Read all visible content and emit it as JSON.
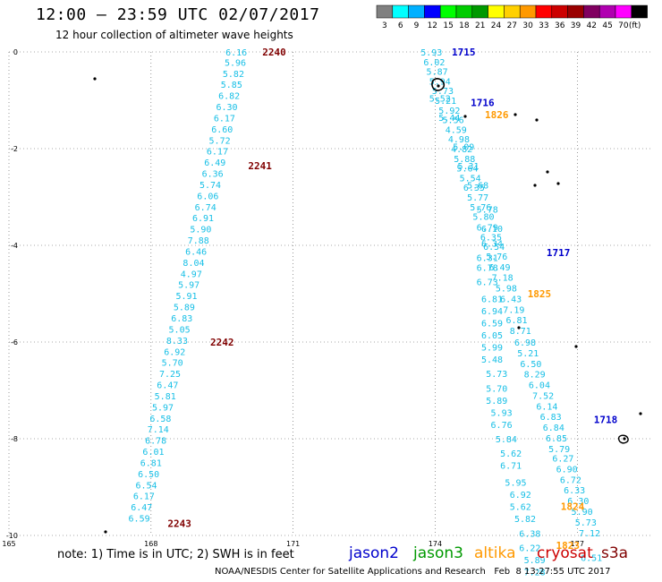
{
  "header": {
    "title": "12:00 – 23:59 UTC 02/07/2017",
    "subtitle": "12 hour collection of altimeter wave heights"
  },
  "legend": {
    "unit": "(ft)",
    "entries": [
      {
        "label": "3",
        "color": "#808080"
      },
      {
        "label": "6",
        "color": "#00ffff"
      },
      {
        "label": "9",
        "color": "#00b0ff"
      },
      {
        "label": "12",
        "color": "#0000ff"
      },
      {
        "label": "15",
        "color": "#00ff00"
      },
      {
        "label": "18",
        "color": "#00cc00"
      },
      {
        "label": "21",
        "color": "#009900"
      },
      {
        "label": "24",
        "color": "#ffff00"
      },
      {
        "label": "27",
        "color": "#ffd000"
      },
      {
        "label": "30",
        "color": "#ff9900"
      },
      {
        "label": "33",
        "color": "#ff0000"
      },
      {
        "label": "36",
        "color": "#cc0000"
      },
      {
        "label": "39",
        "color": "#990000"
      },
      {
        "label": "42",
        "color": "#800060"
      },
      {
        "label": "45",
        "color": "#b000b0"
      },
      {
        "label": "70",
        "color": "#ff00ff"
      },
      {
        "label": "",
        "color": "#000000"
      }
    ]
  },
  "note": "note: 1) Time is in UTC; 2) SWH is in feet",
  "satellites": [
    {
      "name": "jason2",
      "color": "#0000cc"
    },
    {
      "name": "jason3",
      "color": "#009900"
    },
    {
      "name": "altika",
      "color": "#ff9900"
    },
    {
      "name": "cryosat",
      "color": "#cc0000"
    },
    {
      "name": "s3a",
      "color": "#800000"
    }
  ],
  "footer": "NOAA/NESDIS Center for Satellite Applications and Research   Feb  8 13:27:55 UTC 2017",
  "chart_data": {
    "type": "scatter",
    "title": "12:00 – 23:59 UTC 02/07/2017",
    "xlim": [
      165,
      178.6
    ],
    "ylim": [
      -10,
      0
    ],
    "x_ticks": [
      "165",
      "168",
      "171",
      "174",
      "177"
    ],
    "y_ticks": [
      "0",
      "-2",
      "-4",
      "-6",
      "-8",
      "-10"
    ],
    "grid": true,
    "value_color": "#17bfe6",
    "track_colors": {
      "jason2": "#0000cc",
      "altika": "#ff9900",
      "cryosat": "#800000"
    },
    "tracks": [
      {
        "satellite": "cryosat",
        "time_labels": [
          {
            "text": "2240",
            "x": 170.6,
            "y": 0.0
          },
          {
            "text": "2241",
            "x": 170.3,
            "y": -2.35
          },
          {
            "text": "2242",
            "x": 169.5,
            "y": -6.0
          },
          {
            "text": "2243",
            "x": 168.6,
            "y": -9.75
          }
        ],
        "points": [
          {
            "x": 169.8,
            "y": 0.0,
            "swh": "6.16"
          },
          {
            "x": 169.78,
            "y": -0.21,
            "swh": "5.96"
          },
          {
            "x": 169.74,
            "y": -0.44,
            "swh": "5.82"
          },
          {
            "x": 169.7,
            "y": -0.67,
            "swh": "5.85"
          },
          {
            "x": 169.65,
            "y": -0.9,
            "swh": "6.82"
          },
          {
            "x": 169.6,
            "y": -1.13,
            "swh": "6.30"
          },
          {
            "x": 169.55,
            "y": -1.36,
            "swh": "6.17"
          },
          {
            "x": 169.5,
            "y": -1.59,
            "swh": "6.60"
          },
          {
            "x": 169.45,
            "y": -1.82,
            "swh": "5.72"
          },
          {
            "x": 169.4,
            "y": -2.05,
            "swh": "6.17"
          },
          {
            "x": 169.35,
            "y": -2.28,
            "swh": "6.49"
          },
          {
            "x": 169.3,
            "y": -2.51,
            "swh": "6.36"
          },
          {
            "x": 169.25,
            "y": -2.74,
            "swh": "5.74"
          },
          {
            "x": 169.2,
            "y": -2.97,
            "swh": "6.06"
          },
          {
            "x": 169.15,
            "y": -3.2,
            "swh": "6.74"
          },
          {
            "x": 169.1,
            "y": -3.43,
            "swh": "6.91"
          },
          {
            "x": 169.05,
            "y": -3.66,
            "swh": "5.90"
          },
          {
            "x": 169.0,
            "y": -3.89,
            "swh": "7.88"
          },
          {
            "x": 168.95,
            "y": -4.12,
            "swh": "6.46"
          },
          {
            "x": 168.9,
            "y": -4.35,
            "swh": "8.04"
          },
          {
            "x": 168.85,
            "y": -4.58,
            "swh": "4.97"
          },
          {
            "x": 168.8,
            "y": -4.81,
            "swh": "5.97"
          },
          {
            "x": 168.75,
            "y": -5.04,
            "swh": "5.91"
          },
          {
            "x": 168.7,
            "y": -5.27,
            "swh": "5.89"
          },
          {
            "x": 168.65,
            "y": -5.5,
            "swh": "6.83"
          },
          {
            "x": 168.6,
            "y": -5.73,
            "swh": "5.05"
          },
          {
            "x": 168.55,
            "y": -5.96,
            "swh": "8.33"
          },
          {
            "x": 168.5,
            "y": -6.19,
            "swh": "6.92"
          },
          {
            "x": 168.45,
            "y": -6.42,
            "swh": "5.70"
          },
          {
            "x": 168.4,
            "y": -6.65,
            "swh": "7.25"
          },
          {
            "x": 168.35,
            "y": -6.88,
            "swh": "6.47"
          },
          {
            "x": 168.3,
            "y": -7.11,
            "swh": "5.81"
          },
          {
            "x": 168.25,
            "y": -7.34,
            "swh": "5.97"
          },
          {
            "x": 168.2,
            "y": -7.57,
            "swh": "6.58"
          },
          {
            "x": 168.15,
            "y": -7.8,
            "swh": "7.14"
          },
          {
            "x": 168.1,
            "y": -8.03,
            "swh": "6.78"
          },
          {
            "x": 168.05,
            "y": -8.26,
            "swh": "6.01"
          },
          {
            "x": 168.0,
            "y": -8.49,
            "swh": "6.81"
          },
          {
            "x": 167.95,
            "y": -8.72,
            "swh": "6.50"
          },
          {
            "x": 167.9,
            "y": -8.95,
            "swh": "6.54"
          },
          {
            "x": 167.85,
            "y": -9.18,
            "swh": "6.17"
          },
          {
            "x": 167.8,
            "y": -9.41,
            "swh": "6.47"
          },
          {
            "x": 167.75,
            "y": -9.64,
            "swh": "6.59"
          }
        ]
      },
      {
        "satellite": "jason2",
        "time_labels": [
          {
            "text": "1715",
            "x": 174.6,
            "y": 0.0
          },
          {
            "text": "1716",
            "x": 175.0,
            "y": -1.05
          },
          {
            "text": "1717",
            "x": 176.6,
            "y": -4.15
          },
          {
            "text": "1718",
            "x": 177.6,
            "y": -7.6
          }
        ],
        "points": [
          {
            "x": 173.92,
            "y": 0.0,
            "swh": "5.93"
          },
          {
            "x": 173.98,
            "y": -0.2,
            "swh": "6.02"
          },
          {
            "x": 174.04,
            "y": -0.4,
            "swh": "5.87"
          },
          {
            "x": 174.1,
            "y": -0.6,
            "swh": "5.94"
          },
          {
            "x": 174.16,
            "y": -0.8,
            "swh": "5.73"
          },
          {
            "x": 174.22,
            "y": -1.0,
            "swh": "5.21"
          },
          {
            "x": 174.3,
            "y": -1.2,
            "swh": "5.92"
          },
          {
            "x": 174.38,
            "y": -1.4,
            "swh": "5.56"
          },
          {
            "x": 174.44,
            "y": -1.6,
            "swh": "4.59"
          },
          {
            "x": 174.5,
            "y": -1.8,
            "swh": "4.98"
          },
          {
            "x": 174.56,
            "y": -2.0,
            "swh": "4.82"
          },
          {
            "x": 174.62,
            "y": -2.2,
            "swh": "5.88"
          },
          {
            "x": 174.68,
            "y": -2.4,
            "swh": "5.64"
          },
          {
            "x": 174.74,
            "y": -2.6,
            "swh": "5.54"
          },
          {
            "x": 174.82,
            "y": -2.8,
            "swh": "6.35"
          },
          {
            "x": 174.9,
            "y": -3.0,
            "swh": "5.77"
          },
          {
            "x": 174.96,
            "y": -3.2,
            "swh": "5.76"
          },
          {
            "x": 175.02,
            "y": -3.4,
            "swh": "5.80"
          },
          {
            "x": 175.1,
            "y": -3.62,
            "swh": "6.79"
          },
          {
            "x": 175.18,
            "y": -3.82,
            "swh": "6.35"
          },
          {
            "x": 175.24,
            "y": -4.02,
            "swh": "6.54"
          },
          {
            "x": 175.3,
            "y": -4.22,
            "swh": "5.76"
          },
          {
            "x": 175.36,
            "y": -4.44,
            "swh": "6.49"
          },
          {
            "x": 175.42,
            "y": -4.66,
            "swh": "7.18"
          },
          {
            "x": 175.5,
            "y": -4.88,
            "swh": "5.98"
          },
          {
            "x": 175.6,
            "y": -5.1,
            "swh": "6.43"
          },
          {
            "x": 175.66,
            "y": -5.32,
            "swh": "7.19"
          },
          {
            "x": 175.72,
            "y": -5.54,
            "swh": "6.81"
          },
          {
            "x": 175.8,
            "y": -5.76,
            "swh": "8.71"
          },
          {
            "x": 175.9,
            "y": -6.0,
            "swh": "6.98"
          },
          {
            "x": 175.96,
            "y": -6.22,
            "swh": "5.21"
          },
          {
            "x": 176.02,
            "y": -6.44,
            "swh": "6.50"
          },
          {
            "x": 176.1,
            "y": -6.66,
            "swh": "8.29"
          },
          {
            "x": 176.2,
            "y": -6.88,
            "swh": "6.04"
          },
          {
            "x": 176.28,
            "y": -7.1,
            "swh": "7.52"
          },
          {
            "x": 176.36,
            "y": -7.32,
            "swh": "6.14"
          },
          {
            "x": 176.44,
            "y": -7.54,
            "swh": "6.83"
          },
          {
            "x": 176.5,
            "y": -7.76,
            "swh": "6.84"
          },
          {
            "x": 176.56,
            "y": -7.98,
            "swh": "6.85"
          },
          {
            "x": 176.62,
            "y": -8.2,
            "swh": "5.79"
          },
          {
            "x": 176.7,
            "y": -8.4,
            "swh": "6.27"
          },
          {
            "x": 176.78,
            "y": -8.62,
            "swh": "6.90"
          },
          {
            "x": 176.86,
            "y": -8.84,
            "swh": "6.72"
          },
          {
            "x": 176.94,
            "y": -9.06,
            "swh": "6.33"
          },
          {
            "x": 177.02,
            "y": -9.28,
            "swh": "6.30"
          },
          {
            "x": 177.1,
            "y": -9.5,
            "swh": "5.90"
          },
          {
            "x": 177.18,
            "y": -9.72,
            "swh": "5.73"
          },
          {
            "x": 177.26,
            "y": -9.94,
            "swh": "7.12"
          }
        ]
      },
      {
        "satellite": "altika",
        "time_labels": [
          {
            "text": "1826",
            "x": 175.3,
            "y": -1.3
          },
          {
            "text": "1825",
            "x": 176.2,
            "y": -5.0
          },
          {
            "text": "1824",
            "x": 176.9,
            "y": -9.4
          },
          {
            "text": "1823",
            "x": 176.8,
            "y": -10.2
          }
        ],
        "points": [
          {
            "x": 174.1,
            "y": -0.95,
            "swh": "5.52"
          },
          {
            "x": 174.3,
            "y": -1.35,
            "swh": "5.44"
          },
          {
            "x": 174.6,
            "y": -1.95,
            "swh": "5.09"
          },
          {
            "x": 174.7,
            "y": -2.35,
            "swh": "5.31"
          },
          {
            "x": 174.9,
            "y": -2.75,
            "swh": "5.68"
          },
          {
            "x": 175.1,
            "y": -3.25,
            "swh": "5.78"
          },
          {
            "x": 175.2,
            "y": -3.65,
            "swh": "6.10"
          },
          {
            "x": 175.2,
            "y": -3.95,
            "swh": "6.34"
          },
          {
            "x": 175.1,
            "y": -4.25,
            "swh": "6.31"
          },
          {
            "x": 175.1,
            "y": -4.45,
            "swh": "6.78"
          },
          {
            "x": 175.1,
            "y": -4.75,
            "swh": "6.73"
          },
          {
            "x": 175.2,
            "y": -5.1,
            "swh": "6.81"
          },
          {
            "x": 175.2,
            "y": -5.35,
            "swh": "6.94"
          },
          {
            "x": 175.2,
            "y": -5.6,
            "swh": "6.59"
          },
          {
            "x": 175.2,
            "y": -5.85,
            "swh": "6.05"
          },
          {
            "x": 175.2,
            "y": -6.1,
            "swh": "5.99"
          },
          {
            "x": 175.2,
            "y": -6.35,
            "swh": "5.48"
          },
          {
            "x": 175.3,
            "y": -6.65,
            "swh": "5.73"
          },
          {
            "x": 175.3,
            "y": -6.95,
            "swh": "5.70"
          },
          {
            "x": 175.3,
            "y": -7.2,
            "swh": "5.89"
          },
          {
            "x": 175.4,
            "y": -7.45,
            "swh": "5.93"
          },
          {
            "x": 175.4,
            "y": -7.7,
            "swh": "6.76"
          },
          {
            "x": 175.5,
            "y": -8.0,
            "swh": "5.84"
          },
          {
            "x": 175.6,
            "y": -8.3,
            "swh": "5.62"
          },
          {
            "x": 175.6,
            "y": -8.55,
            "swh": "6.71"
          },
          {
            "x": 175.7,
            "y": -8.9,
            "swh": "5.95"
          },
          {
            "x": 175.8,
            "y": -9.15,
            "swh": "6.92"
          },
          {
            "x": 175.8,
            "y": -9.4,
            "swh": "5.62"
          },
          {
            "x": 175.9,
            "y": -9.65,
            "swh": "5.82"
          },
          {
            "x": 176.0,
            "y": -9.95,
            "swh": "6.38"
          },
          {
            "x": 176.0,
            "y": -10.25,
            "swh": "6.22"
          },
          {
            "x": 176.1,
            "y": -10.5,
            "swh": "5.89"
          },
          {
            "x": 176.1,
            "y": -10.75,
            "swh": "7.28"
          },
          {
            "x": 177.3,
            "y": -10.45,
            "swh": "6.51"
          }
        ]
      }
    ]
  }
}
